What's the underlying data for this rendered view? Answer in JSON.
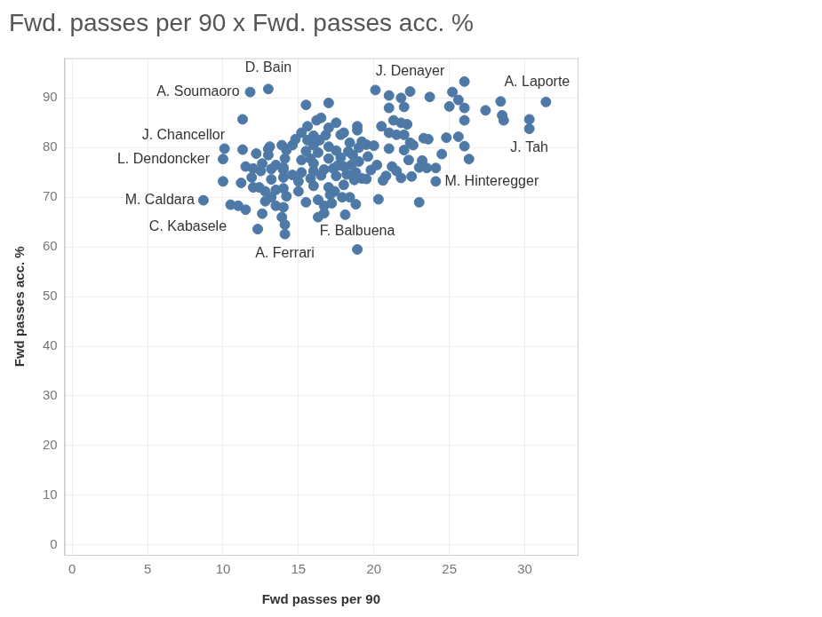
{
  "chart_data": {
    "type": "scatter",
    "title": "Fwd. passes per 90 x Fwd. passes acc. %",
    "x_label": "Fwd passes per 90",
    "y_label": "Fwd passes acc. %",
    "color": "#4e79a7",
    "marker": "circle",
    "grid": true,
    "xlim": [
      -0.5,
      33.5
    ],
    "ylim": [
      -2,
      98
    ],
    "xticks": [
      0,
      5,
      10,
      15,
      20,
      25,
      30
    ],
    "yticks": [
      0,
      10,
      20,
      30,
      40,
      50,
      60,
      70,
      80,
      90
    ],
    "x": [
      8.7,
      10,
      10.1,
      11.3,
      11.8,
      13,
      12.3,
      14.1,
      18.9,
      24.1,
      30.3,
      31.4,
      22.4,
      20.1,
      21,
      26,
      25.2,
      25.6,
      26,
      25,
      27.4,
      28.4,
      28.5,
      28.6,
      30.3,
      26,
      26,
      26.3,
      25.6,
      24.8,
      23.7,
      21.8,
      21,
      22,
      21.3,
      21.8,
      22.2,
      20.5,
      21,
      21.5,
      22,
      23.3,
      23.6,
      22.4,
      22.6,
      21,
      22,
      24.5,
      22.3,
      23.2,
      23,
      23.5,
      24.1,
      21.2,
      21.5,
      20.8,
      21.8,
      22.5,
      20.6,
      23,
      20.3,
      20,
      20.2,
      19.8,
      19.5,
      15.5,
      17,
      16.2,
      17.5,
      16.5,
      15.6,
      17,
      18.9,
      18.9,
      18,
      17.8,
      16.8,
      16,
      15.2,
      14.8,
      15.6,
      16.4,
      18.4,
      19.2,
      19.5,
      19,
      17,
      16,
      14.6,
      13.9,
      13,
      14.2,
      15.5,
      16.3,
      17.5,
      18.3,
      18.6,
      17.8,
      17,
      15.8,
      15.2,
      14.1,
      13.5,
      12.6,
      12,
      12.5,
      11.5,
      13.2,
      14,
      14.6,
      15.2,
      16,
      16.7,
      17.3,
      18,
      18.5,
      19,
      18.8,
      18.2,
      17.5,
      16.5,
      15.8,
      15,
      14,
      13.2,
      12.4,
      12.8,
      13.5,
      14,
      15,
      16,
      17,
      17.4,
      18,
      18.7,
      19.2,
      17.1,
      17.9,
      18.4,
      16.3,
      15.5,
      14.2,
      13.2,
      12.8,
      13.5,
      14,
      12.6,
      13.9,
      14.1,
      16.7,
      16.3,
      18.1,
      17.2,
      18.8,
      16.7,
      11,
      10.5,
      11.5,
      10,
      11.2,
      11.3,
      12.2,
      13,
      12,
      11.9,
      13.1,
      14,
      16,
      17.6,
      19.6,
      18.6
    ],
    "values": [
      69.4,
      77.7,
      79.8,
      85.7,
      91.2,
      91.8,
      63.6,
      62.6,
      59.5,
      73.2,
      83.8,
      89.2,
      91.3,
      91.6,
      90.5,
      93.3,
      91.2,
      89.6,
      88,
      88.3,
      87.5,
      89.3,
      86.5,
      85.5,
      85.7,
      85.5,
      80.3,
      77.7,
      82.2,
      82,
      90.2,
      90,
      88,
      88.2,
      85.5,
      85,
      84.7,
      84.3,
      83,
      82.6,
      82.6,
      81.9,
      81.7,
      81,
      80.5,
      79.8,
      79.5,
      78.7,
      77.5,
      77.4,
      76,
      75.9,
      75.9,
      76.2,
      75.3,
      74.3,
      73.9,
      74.2,
      73.4,
      69,
      69.6,
      80.4,
      76.5,
      75.5,
      73.7,
      88.6,
      89,
      85.5,
      85,
      86,
      84.3,
      84,
      84.3,
      83.5,
      83,
      82.6,
      82.5,
      82.4,
      83,
      81.7,
      81.5,
      81.5,
      81,
      81.2,
      80.6,
      80,
      80.2,
      80.5,
      80.5,
      80.5,
      79.7,
      79.5,
      79.3,
      79,
      79.4,
      79.2,
      78.5,
      78,
      77.8,
      77.8,
      77.5,
      77.8,
      76.5,
      76.8,
      75.8,
      75.3,
      76.2,
      75.7,
      75.5,
      74.5,
      75,
      75.3,
      75.6,
      75.8,
      76.2,
      76.5,
      77.2,
      75,
      74.6,
      74.3,
      74.4,
      73.8,
      73.2,
      74,
      73.6,
      72,
      71.2,
      71.5,
      71.8,
      71.2,
      72.3,
      72,
      71.2,
      72.5,
      73.5,
      73.8,
      70.5,
      70,
      70,
      69.5,
      69,
      70.2,
      70,
      69.2,
      68.3,
      68,
      66.7,
      66,
      64.5,
      66.8,
      66,
      66.5,
      68.8,
      68.6,
      68.3,
      68.3,
      68.5,
      67.5,
      73.2,
      72.9,
      79.6,
      78.8,
      78.5,
      72,
      74,
      80.2,
      76,
      76.8,
      76.4,
      78.2,
      74.4
    ],
    "annotations": [
      {
        "text": "D. Bain",
        "x": 13,
        "y": 91.8
      },
      {
        "text": "A. Soumaoro",
        "x": 11.8,
        "y": 91.2
      },
      {
        "text": "J. Denayer",
        "x": 22.4,
        "y": 91.3
      },
      {
        "text": "A. Laporte",
        "x": 31.4,
        "y": 89.2
      },
      {
        "text": "J. Tah",
        "x": 30.3,
        "y": 83.8
      },
      {
        "text": "M. Hinteregger",
        "x": 24.1,
        "y": 73.2
      },
      {
        "text": "F. Balbuena",
        "x": 18.9,
        "y": 59.5
      },
      {
        "text": "A. Ferrari",
        "x": 14.1,
        "y": 62.6
      },
      {
        "text": "C. Kabasele",
        "x": 12.3,
        "y": 63.6
      },
      {
        "text": "M. Caldara",
        "x": 8.7,
        "y": 69.4
      },
      {
        "text": "L. Dendoncker",
        "x": 10,
        "y": 77.7
      },
      {
        "text": "J. Chancellor",
        "x": 11.3,
        "y": 85.7
      }
    ]
  }
}
